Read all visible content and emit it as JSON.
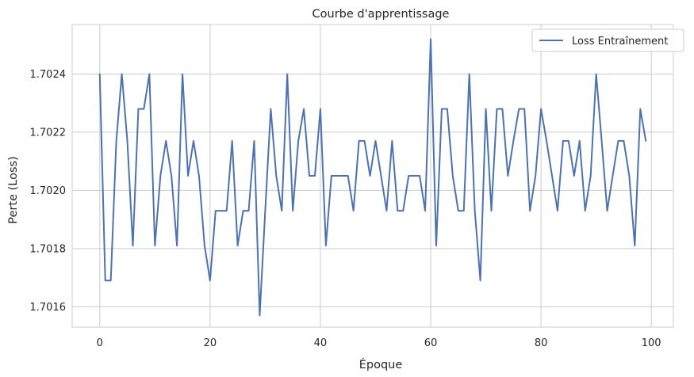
{
  "chart_data": {
    "type": "line",
    "title": "Courbe d'apprentissage",
    "xlabel": "Époque",
    "ylabel": "Perte (Loss)",
    "xlim": [
      -5,
      104
    ],
    "ylim": [
      1.70153,
      1.70257
    ],
    "x_ticks": [
      0,
      20,
      40,
      60,
      80,
      100
    ],
    "y_ticks": [
      1.7016,
      1.7018,
      1.702,
      1.7022,
      1.7024
    ],
    "y_tick_labels": [
      "1.7016",
      "1.7018",
      "1.7020",
      "1.7022",
      "1.7024"
    ],
    "grid": true,
    "legend_position": "upper right",
    "series": [
      {
        "name": "Loss Entraînement",
        "color": "#4c72b0",
        "x": [
          0,
          1,
          2,
          3,
          4,
          5,
          6,
          7,
          8,
          9,
          10,
          11,
          12,
          13,
          14,
          15,
          16,
          17,
          18,
          19,
          20,
          21,
          22,
          23,
          24,
          25,
          26,
          27,
          28,
          29,
          30,
          31,
          32,
          33,
          34,
          35,
          36,
          37,
          38,
          39,
          40,
          41,
          42,
          43,
          44,
          45,
          46,
          47,
          48,
          49,
          50,
          51,
          52,
          53,
          54,
          55,
          56,
          57,
          58,
          59,
          60,
          61,
          62,
          63,
          64,
          65,
          66,
          67,
          68,
          69,
          70,
          71,
          72,
          73,
          74,
          75,
          76,
          77,
          78,
          79,
          80,
          81,
          82,
          83,
          84,
          85,
          86,
          87,
          88,
          89,
          90,
          91,
          92,
          93,
          94,
          95,
          96,
          97,
          98,
          99
        ],
        "values": [
          1.7024,
          1.70169,
          1.70169,
          1.70217,
          1.7024,
          1.70217,
          1.70181,
          1.70228,
          1.70228,
          1.7024,
          1.70181,
          1.70205,
          1.70217,
          1.70205,
          1.70181,
          1.7024,
          1.70205,
          1.70217,
          1.70205,
          1.70181,
          1.70169,
          1.70193,
          1.70193,
          1.70193,
          1.70217,
          1.70181,
          1.70193,
          1.70193,
          1.70217,
          1.70157,
          1.70193,
          1.70228,
          1.70205,
          1.70193,
          1.7024,
          1.70193,
          1.70217,
          1.70228,
          1.70205,
          1.70205,
          1.70228,
          1.70181,
          1.70205,
          1.70205,
          1.70205,
          1.70205,
          1.70193,
          1.70217,
          1.70217,
          1.70205,
          1.70217,
          1.70205,
          1.70193,
          1.70217,
          1.70193,
          1.70193,
          1.70205,
          1.70205,
          1.70205,
          1.70193,
          1.70252,
          1.70181,
          1.70228,
          1.70228,
          1.70205,
          1.70193,
          1.70193,
          1.7024,
          1.70193,
          1.70169,
          1.70228,
          1.70193,
          1.70228,
          1.70228,
          1.70205,
          1.70217,
          1.70228,
          1.70228,
          1.70193,
          1.70205,
          1.70228,
          1.70217,
          1.70205,
          1.70193,
          1.70217,
          1.70217,
          1.70205,
          1.70217,
          1.70193,
          1.70205,
          1.7024,
          1.70217,
          1.70193,
          1.70205,
          1.70217,
          1.70217,
          1.70205,
          1.70181,
          1.70228,
          1.70217
        ]
      }
    ]
  }
}
